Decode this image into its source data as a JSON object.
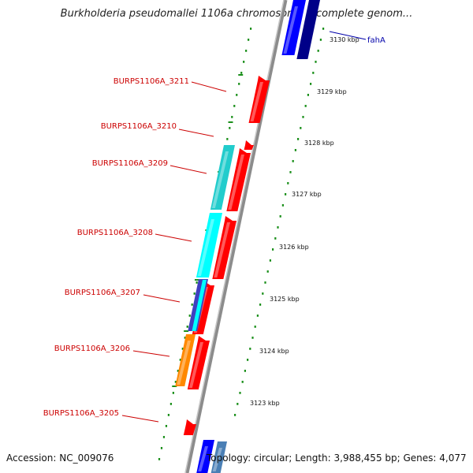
{
  "title": "Burkholderia pseudomallei 1106a chromosome I, complete genom...",
  "accession": "Accession: NC_009076",
  "summary": "Topology: circular; Length: 3,988,455 bp; Genes: 4,077",
  "colors": {
    "backbone": "#8c8c8c",
    "tick_dot": "#1a8f1a",
    "forward_cds": "#ff0000",
    "label_red": "#cc0000",
    "label_blue": "#0000aa",
    "cyan": "#22cccc",
    "light_cyan": "#00ffff",
    "blue": "#0000ff",
    "navy": "#000088",
    "orange": "#ff8800"
  },
  "scale_labels": [
    "3130 kbp",
    "3129 kbp",
    "3128 kbp",
    "3127 kbp",
    "3126 kbp",
    "3125 kbp",
    "3124 kbp",
    "3123 kbp"
  ],
  "gene_labels": [
    {
      "text": "fahA",
      "color": "blue"
    },
    {
      "text": "BURPS1106A_3211",
      "color": "red"
    },
    {
      "text": "BURPS1106A_3210",
      "color": "red"
    },
    {
      "text": "BURPS1106A_3209",
      "color": "red"
    },
    {
      "text": "BURPS1106A_3208",
      "color": "red"
    },
    {
      "text": "BURPS1106A_3207",
      "color": "red"
    },
    {
      "text": "BURPS1106A_3206",
      "color": "red"
    },
    {
      "text": "BURPS1106A_3205",
      "color": "red"
    }
  ]
}
